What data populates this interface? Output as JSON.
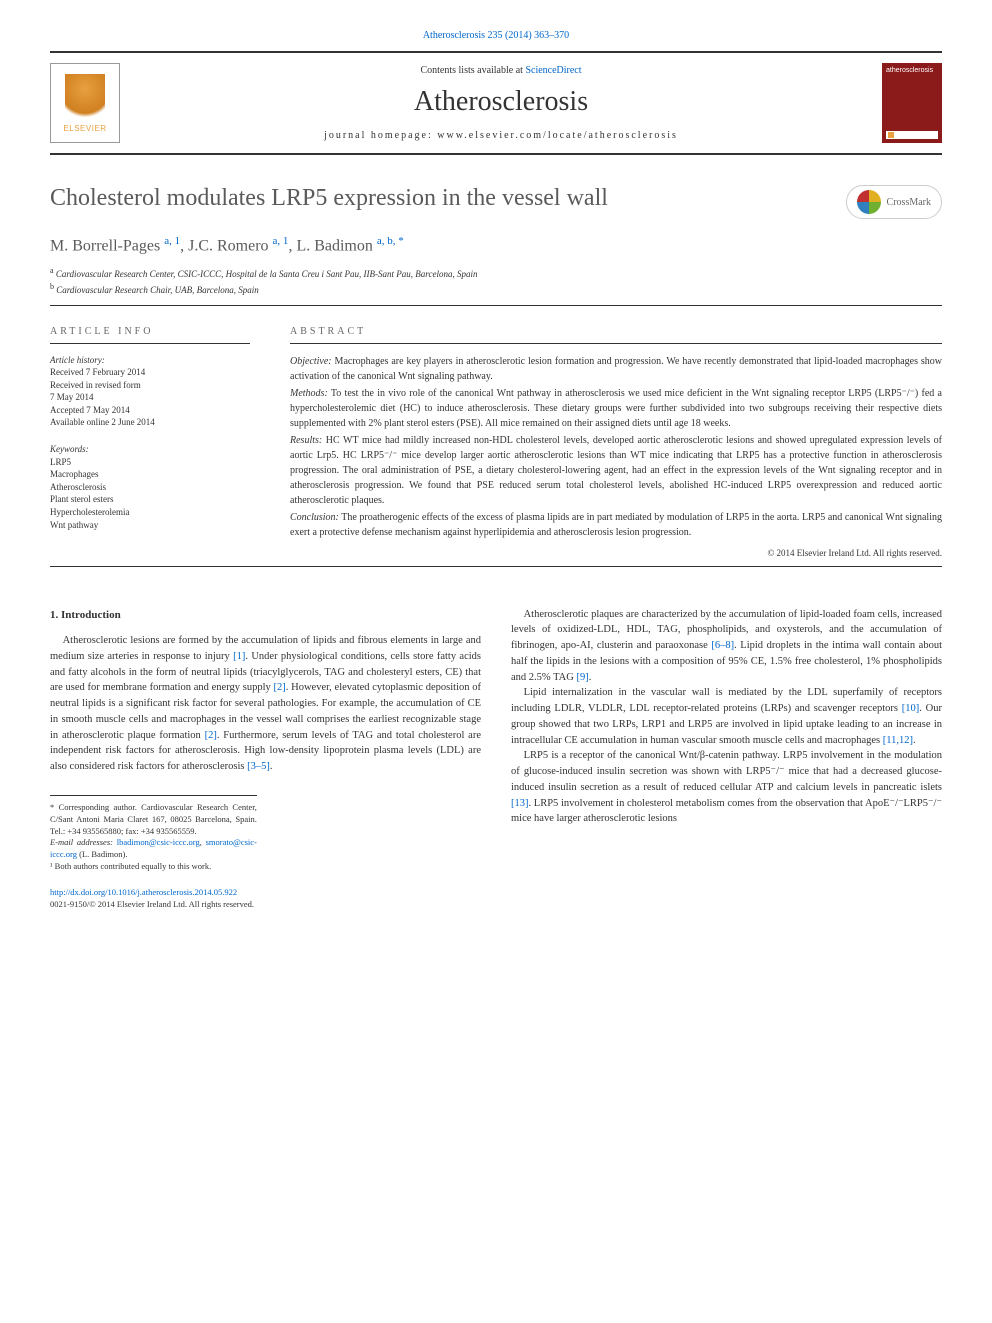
{
  "citation": "Atherosclerosis 235 (2014) 363–370",
  "banner": {
    "contents_prefix": "Contents lists available at ",
    "contents_link": "ScienceDirect",
    "journal_name": "Atherosclerosis",
    "homepage_prefix": "journal homepage: ",
    "homepage": "www.elsevier.com/locate/atherosclerosis",
    "elsevier_brand": "ELSEVIER",
    "cover_text": "atherosclerosis"
  },
  "crossmark_label": "CrossMark",
  "title": "Cholesterol modulates LRP5 expression in the vessel wall",
  "authors_html": "M. Borrell-Pages <a>a, 1</a>, J.C. Romero <a>a, 1</a>, L. Badimon <a>a, b, *</a>",
  "affiliations": [
    {
      "sup": "a",
      "text": "Cardiovascular Research Center, CSIC-ICCC, Hospital de la Santa Creu i Sant Pau, IIB-Sant Pau, Barcelona, Spain"
    },
    {
      "sup": "b",
      "text": "Cardiovascular Research Chair, UAB, Barcelona, Spain"
    }
  ],
  "article_info": {
    "label": "ARTICLE INFO",
    "history_label": "Article history:",
    "history": [
      "Received 7 February 2014",
      "Received in revised form",
      "7 May 2014",
      "Accepted 7 May 2014",
      "Available online 2 June 2014"
    ],
    "keywords_label": "Keywords:",
    "keywords": [
      "LRP5",
      "Macrophages",
      "Atherosclerosis",
      "Plant sterol esters",
      "Hypercholesterolemia",
      "Wnt pathway"
    ]
  },
  "abstract": {
    "label": "ABSTRACT",
    "sections": [
      {
        "head": "Objective:",
        "text": "Macrophages are key players in atherosclerotic lesion formation and progression. We have recently demonstrated that lipid-loaded macrophages show activation of the canonical Wnt signaling pathway."
      },
      {
        "head": "Methods:",
        "text": "To test the in vivo role of the canonical Wnt pathway in atherosclerosis we used mice deficient in the Wnt signaling receptor LRP5 (LRP5⁻/⁻) fed a hypercholesterolemic diet (HC) to induce atherosclerosis. These dietary groups were further subdivided into two subgroups receiving their respective diets supplemented with 2% plant sterol esters (PSE). All mice remained on their assigned diets until age 18 weeks."
      },
      {
        "head": "Results:",
        "text": "HC WT mice had mildly increased non-HDL cholesterol levels, developed aortic atherosclerotic lesions and showed upregulated expression levels of aortic Lrp5. HC LRP5⁻/⁻ mice develop larger aortic atherosclerotic lesions than WT mice indicating that LRP5 has a protective function in atherosclerosis progression. The oral administration of PSE, a dietary cholesterol-lowering agent, had an effect in the expression levels of the Wnt signaling receptor and in atherosclerosis progression. We found that PSE reduced serum total cholesterol levels, abolished HC-induced LRP5 overexpression and reduced aortic atherosclerotic plaques."
      },
      {
        "head": "Conclusion:",
        "text": "The proatherogenic effects of the excess of plasma lipids are in part mediated by modulation of LRP5 in the aorta. LRP5 and canonical Wnt signaling exert a protective defense mechanism against hyperlipidemia and atherosclerosis lesion progression."
      }
    ],
    "copyright": "© 2014 Elsevier Ireland Ltd. All rights reserved."
  },
  "body": {
    "heading": "1. Introduction",
    "left": [
      "Atherosclerotic lesions are formed by the accumulation of lipids and fibrous elements in large and medium size arteries in response to injury [1]. Under physiological conditions, cells store fatty acids and fatty alcohols in the form of neutral lipids (triacylglycerols, TAG and cholesteryl esters, CE) that are used for membrane formation and energy supply [2]. However, elevated cytoplasmic deposition of neutral lipids is a significant risk factor for several pathologies. For example, the accumulation of CE in smooth muscle cells and macrophages in the vessel wall comprises the earliest recognizable stage in atherosclerotic plaque formation [2]. Furthermore, serum levels of TAG and total cholesterol are independent risk factors for atherosclerosis. High low-density lipoprotein plasma levels (LDL) are also considered risk factors for atherosclerosis [3–5]."
    ],
    "right": [
      "Atherosclerotic plaques are characterized by the accumulation of lipid-loaded foam cells, increased levels of oxidized-LDL, HDL, TAG, phospholipids, and oxysterols, and the accumulation of fibrinogen, apo-AI, clusterin and paraoxonase [6–8]. Lipid droplets in the intima wall contain about half the lipids in the lesions with a composition of 95% CE, 1.5% free cholesterol, 1% phospholipids and 2.5% TAG [9].",
      "Lipid internalization in the vascular wall is mediated by the LDL superfamily of receptors including LDLR, VLDLR, LDL receptor-related proteins (LRPs) and scavenger receptors [10]. Our group showed that two LRPs, LRP1 and LRP5 are involved in lipid uptake leading to an increase in intracellular CE accumulation in human vascular smooth muscle cells and macrophages [11,12].",
      "LRP5 is a receptor of the canonical Wnt/β-catenin pathway. LRP5 involvement in the modulation of glucose-induced insulin secretion was shown with LRP5⁻/⁻ mice that had a decreased glucose-induced insulin secretion as a result of reduced cellular ATP and calcium levels in pancreatic islets [13]. LRP5 involvement in cholesterol metabolism comes from the observation that ApoE⁻/⁻LRP5⁻/⁻ mice have larger atherosclerotic lesions"
    ]
  },
  "footnotes": {
    "corresponding": "* Corresponding author. Cardiovascular Research Center, C/Sant Antoni Maria Claret 167, 08025 Barcelona, Spain. Tel.: +34 935565880; fax: +34 935565559.",
    "email_label": "E-mail addresses:",
    "emails": [
      "lbadimon@csic-iccc.org",
      "smorato@csic-iccc.org"
    ],
    "email_suffix": "(L. Badimon).",
    "equal": "¹ Both authors contributed equally to this work."
  },
  "doi": {
    "url": "http://dx.doi.org/10.1016/j.atherosclerosis.2014.05.922",
    "issn_line": "0021-9150/© 2014 Elsevier Ireland Ltd. All rights reserved."
  },
  "ref_links": [
    "[1]",
    "[2]",
    "[3–5]",
    "[6–8]",
    "[9]",
    "[10]",
    "[11,12]",
    "[13]"
  ],
  "colors": {
    "link": "#0066cc",
    "text": "#333333",
    "title_grey": "#5a5a5a",
    "elsevier_orange": "#e8a040",
    "cover_red": "#8b1a1a"
  },
  "typography": {
    "title_fontsize": 24,
    "journal_fontsize": 28,
    "body_fontsize": 10.5,
    "abstract_fontsize": 10,
    "info_fontsize": 9,
    "footnote_fontsize": 8.5
  }
}
